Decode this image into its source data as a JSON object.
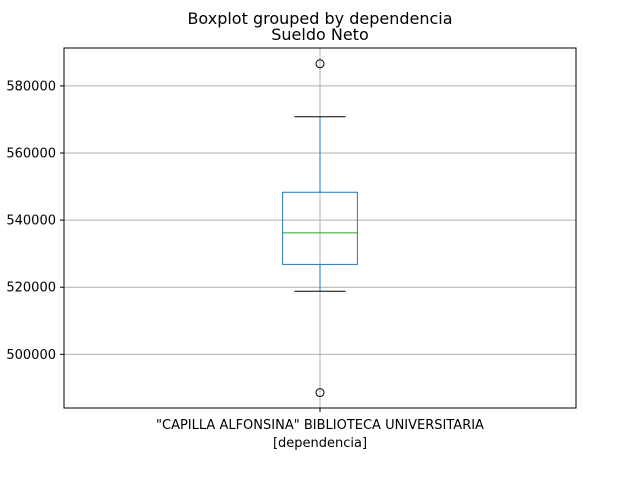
{
  "chart_data": {
    "type": "boxplot",
    "suptitle": "Boxplot grouped by dependencia",
    "title": "Sueldo Neto",
    "xlabel": "[dependencia]",
    "ylabel": "",
    "categories": [
      "\"CAPILLA ALFONSINA\" BIBLIOTECA UNIVERSITARIA"
    ],
    "boxes": [
      {
        "category": "\"CAPILLA ALFONSINA\" BIBLIOTECA UNIVERSITARIA",
        "whisker_low": 518800,
        "q1": 526800,
        "median": 536200,
        "q3": 548300,
        "whisker_high": 570800,
        "outliers": [
          586600,
          488600
        ]
      }
    ],
    "yticks": [
      500000,
      520000,
      540000,
      560000,
      580000
    ],
    "ytick_labels": [
      "500000",
      "520000",
      "540000",
      "560000",
      "580000"
    ],
    "ylim": [
      484000,
      591300
    ],
    "grid": true,
    "colors": {
      "box": "#1f77b4",
      "median": "#2ca02c",
      "whisker_cap": "#000000",
      "grid": "#b0b0b0",
      "axes": "#000000"
    }
  }
}
